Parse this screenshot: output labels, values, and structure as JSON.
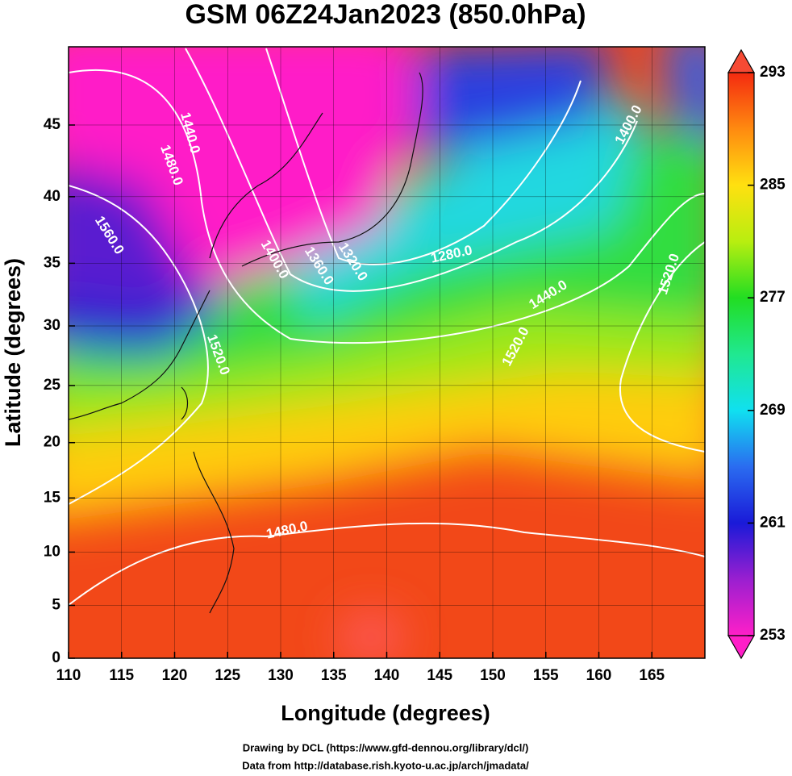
{
  "chart_data": {
    "type": "map",
    "title": "GSM 06Z24Jan2023 (850.0hPa)",
    "x_label": "Longitude (degrees)",
    "y_label": "Latitude  (degrees)",
    "projection": "mercator",
    "xlim": [
      110,
      170
    ],
    "ylim": [
      0,
      50
    ],
    "xticks": [
      110,
      115,
      120,
      125,
      130,
      135,
      140,
      145,
      150,
      155,
      160,
      165
    ],
    "yticks": [
      0,
      5,
      10,
      15,
      20,
      25,
      30,
      35,
      40,
      45
    ],
    "grid": true,
    "colorbar": {
      "lim": [
        253,
        293
      ],
      "ticks": [
        253,
        261,
        269,
        277,
        285,
        293
      ],
      "colors": [
        "#ff1fc8",
        "#9a1fd0",
        "#1a1ad8",
        "#2a6cf0",
        "#10e0f0",
        "#20e890",
        "#22dd22",
        "#b8ee10",
        "#ffe010",
        "#ff8a10",
        "#f42a10"
      ]
    },
    "contour_labels": [
      "1440.0",
      "1480.0",
      "1560.0",
      "1400.0",
      "1360.0",
      "1320.0",
      "1280.0",
      "1440.0",
      "1520.0",
      "1400.0",
      "1520.0",
      "1520.0",
      "1480.0"
    ],
    "credits": [
      "Drawing by DCL (https://www.gfd-dennou.org/library/dcl/)",
      "Data from http://database.rish.kyoto-u.ac.jp/arch/jmadata/"
    ]
  }
}
